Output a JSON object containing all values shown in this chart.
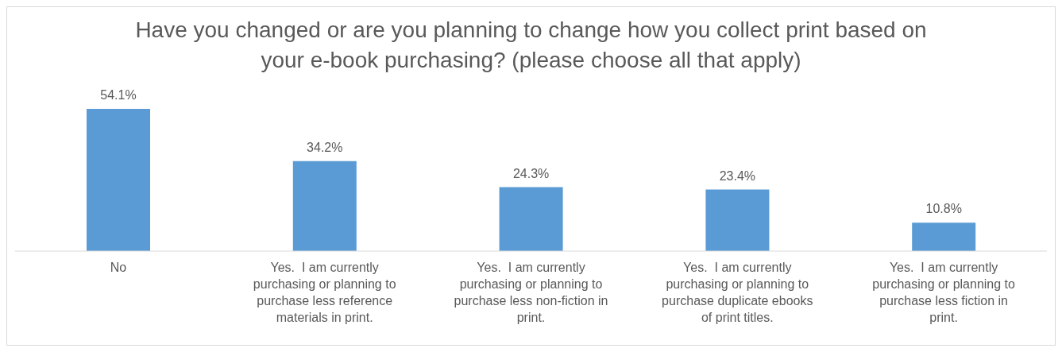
{
  "chart_data": {
    "type": "bar",
    "title": "Have you changed or are you planning to change how you collect print based on your e-book purchasing? (please choose all that apply)",
    "categories": [
      "No",
      "Yes.  I am currently purchasing or planning to purchase less reference materials in print.",
      "Yes.  I am currently purchasing or planning to purchase less non-fiction in print.",
      "Yes.  I am currently purchasing or planning to purchase duplicate ebooks of print titles.",
      "Yes.  I am currently purchasing or planning to purchase less fiction in print."
    ],
    "values": [
      54.1,
      34.2,
      24.3,
      23.4,
      10.8
    ],
    "value_labels": [
      "54.1%",
      "34.2%",
      "24.3%",
      "23.4%",
      "10.8%"
    ],
    "color": "#5b9bd5"
  }
}
